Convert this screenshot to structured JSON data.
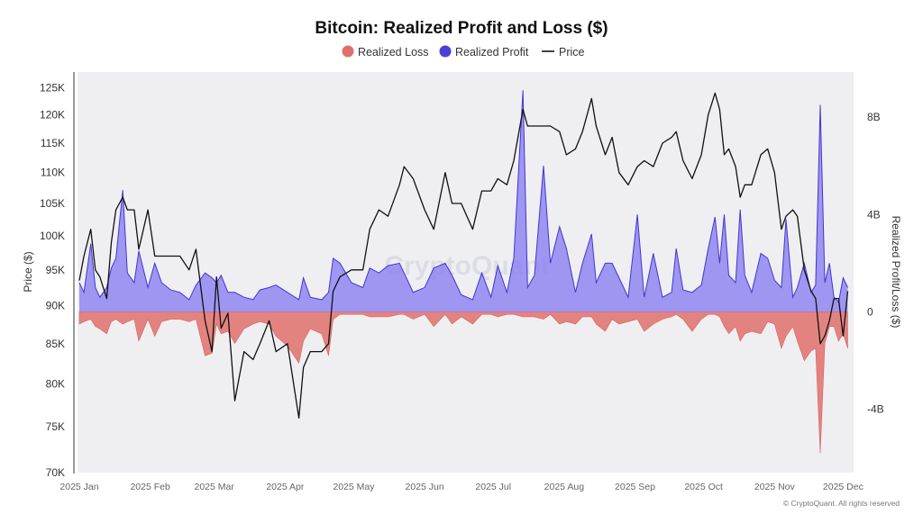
{
  "chart_data": {
    "type": "area",
    "title": "Bitcoin: Realized Profit and Loss ($)",
    "legend": [
      {
        "name": "Realized Loss",
        "color": "#e06e6a",
        "marker": "dot"
      },
      {
        "name": "Realized Profit",
        "color": "#4b3fd8",
        "marker": "dot"
      },
      {
        "name": "Price",
        "color": "#111111",
        "marker": "line"
      }
    ],
    "legend_position": "top-center",
    "ylabel_left": "Price ($)",
    "ylabel_right": "Realized Profit/Loss ($)",
    "y_left_scale": "log",
    "y_left_range": [
      70000,
      128000
    ],
    "y_left_ticks": [
      "125K",
      "120K",
      "115K",
      "110K",
      "105K",
      "100K",
      "95K",
      "90K",
      "85K",
      "80K",
      "75K",
      "70K"
    ],
    "y_left_tick_values": [
      125000,
      120000,
      115000,
      110000,
      105000,
      100000,
      95000,
      90000,
      85000,
      80000,
      75000,
      70000
    ],
    "y_right_range": [
      -6.6,
      9.85
    ],
    "y_right_ticks": [
      "8B",
      "4B",
      "0",
      "-4B"
    ],
    "y_right_tick_values": [
      8,
      4,
      0,
      -4
    ],
    "x_ticks": [
      "2025 Jan",
      "2025 Feb",
      "2025 Mar",
      "2025 Apr",
      "2025 May",
      "2025 Jun",
      "2025 Jul",
      "2025 Aug",
      "2025 Sep",
      "2025 Oct",
      "2025 Nov",
      "2025 Dec"
    ],
    "x_tick_dates": [
      "2025-01-01",
      "2025-02-01",
      "2025-03-01",
      "2025-04-01",
      "2025-05-01",
      "2025-06-01",
      "2025-07-01",
      "2025-08-01",
      "2025-09-01",
      "2025-10-01",
      "2025-11-01",
      "2025-12-01"
    ],
    "x_range": [
      "2025-01-01",
      "2025-12-06"
    ],
    "grid": false,
    "series_columns": [
      "date",
      "price_k_usd",
      "realized_profit_b_usd",
      "realized_loss_b_usd"
    ],
    "points": [
      [
        "2025-01-01",
        93.5,
        1.2,
        -0.5
      ],
      [
        "2025-01-03",
        97,
        0.8,
        -0.4
      ],
      [
        "2025-01-06",
        101,
        2.8,
        -0.3
      ],
      [
        "2025-01-08",
        95,
        1.0,
        -0.6
      ],
      [
        "2025-01-10",
        94,
        0.6,
        -0.7
      ],
      [
        "2025-01-13",
        91,
        1.0,
        -0.9
      ],
      [
        "2025-01-15",
        99,
        1.8,
        -0.4
      ],
      [
        "2025-01-17",
        104,
        2.2,
        -0.3
      ],
      [
        "2025-01-20",
        106,
        5.0,
        -0.5
      ],
      [
        "2025-01-22",
        104,
        1.6,
        -0.4
      ],
      [
        "2025-01-25",
        104,
        1.2,
        -0.3
      ],
      [
        "2025-01-27",
        98,
        2.5,
        -1.2
      ],
      [
        "2025-01-31",
        104,
        1.0,
        -0.3
      ],
      [
        "2025-02-03",
        97,
        2.0,
        -1.0
      ],
      [
        "2025-02-06",
        97,
        1.2,
        -0.4
      ],
      [
        "2025-02-10",
        97,
        0.9,
        -0.3
      ],
      [
        "2025-02-14",
        97,
        0.8,
        -0.3
      ],
      [
        "2025-02-18",
        95,
        0.5,
        -0.4
      ],
      [
        "2025-02-21",
        98,
        1.1,
        -0.3
      ],
      [
        "2025-02-25",
        88,
        1.6,
        -1.8
      ],
      [
        "2025-02-28",
        84,
        1.4,
        -1.7
      ],
      [
        "2025-03-02",
        94,
        1.2,
        -0.5
      ],
      [
        "2025-03-04",
        87,
        1.5,
        -0.9
      ],
      [
        "2025-03-07",
        89,
        0.8,
        -0.8
      ],
      [
        "2025-03-10",
        78,
        0.8,
        -1.3
      ],
      [
        "2025-03-14",
        84,
        0.6,
        -0.7
      ],
      [
        "2025-03-18",
        83,
        0.5,
        -0.5
      ],
      [
        "2025-03-21",
        85,
        0.9,
        -0.4
      ],
      [
        "2025-03-25",
        88,
        1.0,
        -0.5
      ],
      [
        "2025-03-28",
        84,
        1.1,
        -1.0
      ],
      [
        "2025-04-02",
        85,
        0.8,
        -1.4
      ],
      [
        "2025-04-07",
        76,
        0.5,
        -2.1
      ],
      [
        "2025-04-09",
        82,
        1.4,
        -1.2
      ],
      [
        "2025-04-12",
        84,
        0.6,
        -0.7
      ],
      [
        "2025-04-17",
        84,
        0.5,
        -0.9
      ],
      [
        "2025-04-20",
        85,
        0.8,
        -1.8
      ],
      [
        "2025-04-22",
        92,
        2.2,
        -0.3
      ],
      [
        "2025-04-25",
        94,
        2.0,
        -0.1
      ],
      [
        "2025-04-30",
        95,
        1.2,
        -0.1
      ],
      [
        "2025-05-05",
        95,
        1.0,
        -0.1
      ],
      [
        "2025-05-08",
        101,
        1.8,
        -0.2
      ],
      [
        "2025-05-12",
        104,
        1.6,
        -0.2
      ],
      [
        "2025-05-16",
        103,
        1.9,
        -0.2
      ],
      [
        "2025-05-21",
        108,
        2.0,
        -0.1
      ],
      [
        "2025-05-23",
        111,
        1.6,
        -0.1
      ],
      [
        "2025-05-27",
        109,
        0.8,
        -0.3
      ],
      [
        "2025-06-01",
        104,
        1.0,
        -0.1
      ],
      [
        "2025-06-05",
        101,
        1.8,
        -0.6
      ],
      [
        "2025-06-10",
        110,
        2.0,
        -0.1
      ],
      [
        "2025-06-13",
        105,
        1.5,
        -0.5
      ],
      [
        "2025-06-17",
        105,
        0.7,
        -0.2
      ],
      [
        "2025-06-22",
        101,
        0.5,
        -0.5
      ],
      [
        "2025-06-26",
        107,
        1.6,
        -0.1
      ],
      [
        "2025-06-30",
        107,
        0.6,
        -0.1
      ],
      [
        "2025-07-03",
        109,
        1.9,
        -0.2
      ],
      [
        "2025-07-07",
        108,
        0.8,
        -0.1
      ],
      [
        "2025-07-10",
        112,
        2.2,
        -0.1
      ],
      [
        "2025-07-14",
        121,
        9.1,
        -0.2
      ],
      [
        "2025-07-16",
        118,
        1.0,
        -0.2
      ],
      [
        "2025-07-19",
        118,
        1.5,
        -0.2
      ],
      [
        "2025-07-23",
        118,
        6.0,
        -0.3
      ],
      [
        "2025-07-26",
        118,
        2.0,
        -0.1
      ],
      [
        "2025-07-30",
        117,
        3.5,
        -0.5
      ],
      [
        "2025-08-02",
        113,
        2.6,
        -0.4
      ],
      [
        "2025-08-06",
        114,
        0.8,
        -0.5
      ],
      [
        "2025-08-09",
        117,
        2.0,
        -0.2
      ],
      [
        "2025-08-13",
        123,
        3.2,
        -0.2
      ],
      [
        "2025-08-15",
        118,
        1.2,
        -0.5
      ],
      [
        "2025-08-19",
        113,
        2.0,
        -0.8
      ],
      [
        "2025-08-22",
        116,
        2.0,
        -0.3
      ],
      [
        "2025-08-25",
        110,
        1.4,
        -0.5
      ],
      [
        "2025-08-29",
        108,
        0.6,
        -0.4
      ],
      [
        "2025-09-02",
        111,
        4.0,
        -0.3
      ],
      [
        "2025-09-05",
        112,
        0.6,
        -0.8
      ],
      [
        "2025-09-09",
        111,
        2.4,
        -0.5
      ],
      [
        "2025-09-13",
        115,
        0.6,
        -0.3
      ],
      [
        "2025-09-17",
        116,
        0.8,
        -0.2
      ],
      [
        "2025-09-19",
        117,
        2.6,
        -0.1
      ],
      [
        "2025-09-22",
        112,
        0.9,
        -0.3
      ],
      [
        "2025-09-26",
        109,
        0.8,
        -0.8
      ],
      [
        "2025-09-30",
        113,
        1.1,
        -0.3
      ],
      [
        "2025-10-03",
        120,
        2.6,
        -0.1
      ],
      [
        "2025-10-06",
        124,
        3.9,
        -0.1
      ],
      [
        "2025-10-08",
        121,
        2.0,
        -0.2
      ],
      [
        "2025-10-10",
        113,
        4.0,
        -0.6
      ],
      [
        "2025-10-12",
        114,
        1.5,
        -0.9
      ],
      [
        "2025-10-15",
        111,
        1.2,
        -0.6
      ],
      [
        "2025-10-17",
        106,
        4.2,
        -1.2
      ],
      [
        "2025-10-19",
        108,
        1.5,
        -0.9
      ],
      [
        "2025-10-22",
        108,
        0.8,
        -0.8
      ],
      [
        "2025-10-26",
        113,
        2.4,
        -0.9
      ],
      [
        "2025-10-29",
        114,
        2.2,
        -0.4
      ],
      [
        "2025-11-01",
        110,
        1.3,
        -0.5
      ],
      [
        "2025-11-04",
        101,
        1.0,
        -1.5
      ],
      [
        "2025-11-06",
        103,
        3.8,
        -1.0
      ],
      [
        "2025-11-09",
        104,
        0.6,
        -0.6
      ],
      [
        "2025-11-11",
        103,
        1.0,
        -1.2
      ],
      [
        "2025-11-14",
        95,
        2.0,
        -2.0
      ],
      [
        "2025-11-17",
        92,
        0.8,
        -1.6
      ],
      [
        "2025-11-19",
        91,
        1.1,
        -1.5
      ],
      [
        "2025-11-21",
        85,
        8.5,
        -5.8
      ],
      [
        "2025-11-23",
        86,
        1.2,
        -1.3
      ],
      [
        "2025-11-25",
        88,
        2.0,
        -0.6
      ],
      [
        "2025-11-27",
        91,
        0.6,
        -0.6
      ],
      [
        "2025-11-29",
        91,
        0.4,
        -1.2
      ],
      [
        "2025-12-01",
        86,
        1.4,
        -0.9
      ],
      [
        "2025-12-03",
        92,
        1.0,
        -1.5
      ]
    ],
    "watermark": "CryptoQuant"
  },
  "footer": {
    "copyright": "© CryptoQuant. All rights reserved"
  }
}
